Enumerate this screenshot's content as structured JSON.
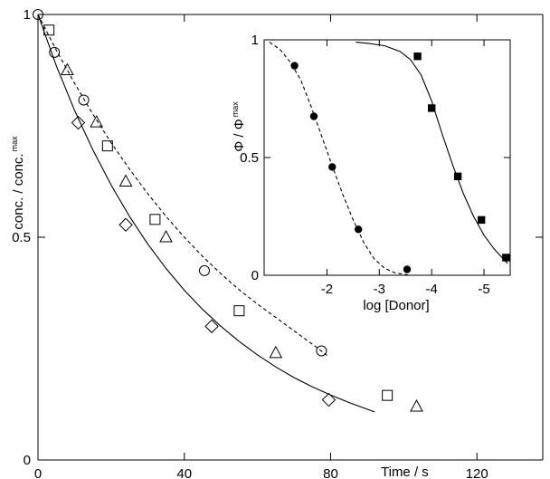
{
  "chart_data": [
    {
      "type": "scatter",
      "title": "",
      "xlabel": "Time / s",
      "ylabel": "conc. / conc. max",
      "ylabel_parts": {
        "main": "conc. / conc.",
        "sup": "max"
      },
      "xlim": [
        0,
        138
      ],
      "ylim": [
        0,
        1
      ],
      "x_ticks": [
        0,
        40,
        80,
        120
      ],
      "x_tick_labels": [
        "0",
        "40",
        "80",
        "120"
      ],
      "y_ticks": [
        0,
        0.5,
        1
      ],
      "y_tick_labels": [
        "0",
        "0.5",
        "1"
      ],
      "grid": false,
      "series": [
        {
          "marker": "circle",
          "x": [
            0,
            4.5,
            12.5,
            45.5,
            77.5
          ],
          "y": [
            1.0,
            0.915,
            0.808,
            0.425,
            0.245
          ]
        },
        {
          "marker": "square",
          "x": [
            3,
            19,
            32,
            55,
            95.5
          ],
          "y": [
            0.965,
            0.705,
            0.54,
            0.335,
            0.145
          ]
        },
        {
          "marker": "triangle",
          "x": [
            8,
            16,
            24,
            35,
            65,
            103.5
          ],
          "y": [
            0.875,
            0.758,
            0.625,
            0.5,
            0.24,
            0.12
          ]
        },
        {
          "marker": "diamond",
          "x": [
            11,
            24,
            47.5,
            79.5
          ],
          "y": [
            0.757,
            0.528,
            0.3,
            0.135
          ]
        }
      ],
      "curves": [
        {
          "style": "solid",
          "x": [
            0,
            5,
            10,
            15,
            20,
            25,
            30,
            35,
            40,
            45,
            50,
            55,
            60,
            65,
            70,
            75,
            80,
            85,
            92
          ],
          "y": [
            1.0,
            0.885,
            0.785,
            0.696,
            0.617,
            0.547,
            0.485,
            0.43,
            0.381,
            0.338,
            0.3,
            0.266,
            0.236,
            0.209,
            0.185,
            0.164,
            0.146,
            0.129,
            0.108
          ]
        },
        {
          "style": "dashed",
          "x": [
            0,
            5,
            10,
            15,
            20,
            25,
            30,
            35,
            40,
            45,
            50,
            55,
            60,
            65,
            70,
            75,
            79
          ],
          "y": [
            1.0,
            0.92,
            0.846,
            0.776,
            0.712,
            0.653,
            0.598,
            0.547,
            0.5,
            0.457,
            0.418,
            0.382,
            0.35,
            0.32,
            0.29,
            0.26,
            0.235
          ]
        }
      ]
    },
    {
      "type": "scatter",
      "title": "",
      "xlabel": "log [Donor]",
      "ylabel": "Φ / Φ max",
      "ylabel_parts": {
        "main": "Φ / Φ",
        "sup": "max"
      },
      "x_axis_reversed": true,
      "xlim": [
        -0.8,
        -5.5
      ],
      "ylim": [
        0,
        1
      ],
      "x_ticks": [
        -2,
        -3,
        -4,
        -5
      ],
      "x_tick_labels": [
        "-2",
        "-3",
        "-4",
        "-5"
      ],
      "y_ticks": [
        0,
        0.5,
        1
      ],
      "y_tick_labels": [
        "0",
        "0.5",
        "1"
      ],
      "grid": false,
      "series": [
        {
          "marker": "filled-circle",
          "x": [
            -1.38,
            -1.75,
            -2.1,
            -2.6,
            -3.53
          ],
          "y": [
            0.89,
            0.675,
            0.46,
            0.195,
            0.025
          ]
        },
        {
          "marker": "filled-square",
          "x": [
            -3.73,
            -4.0,
            -4.5,
            -4.95,
            -5.42
          ],
          "y": [
            0.93,
            0.71,
            0.42,
            0.235,
            0.075
          ]
        }
      ],
      "curves": [
        {
          "style": "dashed",
          "x": [
            -0.9,
            -1.1,
            -1.3,
            -1.5,
            -1.7,
            -1.9,
            -2.1,
            -2.3,
            -2.5,
            -2.7,
            -2.9,
            -3.1,
            -3.3,
            -3.5,
            -3.6
          ],
          "y": [
            0.99,
            0.96,
            0.905,
            0.83,
            0.715,
            0.59,
            0.465,
            0.345,
            0.235,
            0.14,
            0.07,
            0.03,
            0.01,
            0.003,
            0.0
          ]
        },
        {
          "style": "solid",
          "x": [
            -2.55,
            -2.8,
            -3.1,
            -3.4,
            -3.6,
            -3.8,
            -4.0,
            -4.2,
            -4.4,
            -4.6,
            -4.8,
            -5.0,
            -5.2,
            -5.45
          ],
          "y": [
            0.99,
            0.985,
            0.975,
            0.95,
            0.915,
            0.85,
            0.74,
            0.6,
            0.47,
            0.35,
            0.25,
            0.17,
            0.11,
            0.05
          ]
        }
      ]
    }
  ]
}
